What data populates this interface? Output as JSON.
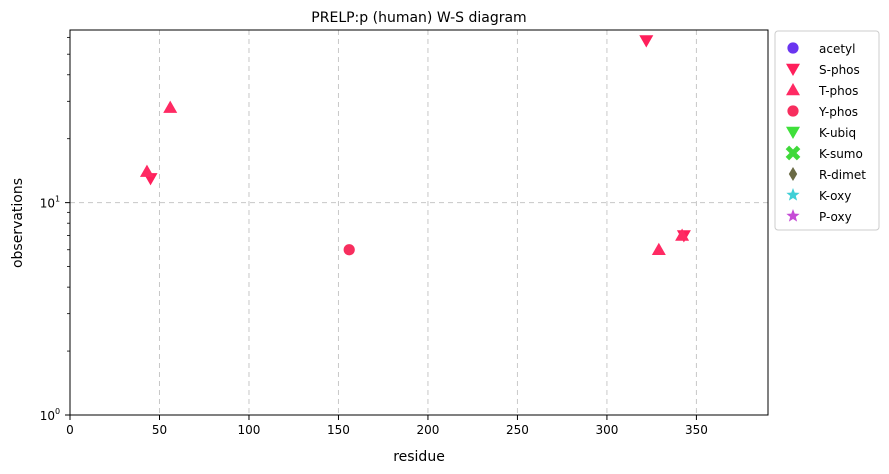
{
  "chart_data": {
    "type": "scatter",
    "title": "PRELP:p (human) W-S diagram",
    "xlabel": "residue",
    "ylabel": "observations",
    "xlim": [
      0,
      390
    ],
    "ylim": [
      1,
      65
    ],
    "yscale": "log",
    "grid": true,
    "legend_position": "outside-right",
    "x_ticks": [
      {
        "value": 0,
        "label": "0"
      },
      {
        "value": 50,
        "label": "50"
      },
      {
        "value": 100,
        "label": "100"
      },
      {
        "value": 150,
        "label": "150"
      },
      {
        "value": 200,
        "label": "200"
      },
      {
        "value": 250,
        "label": "250"
      },
      {
        "value": 300,
        "label": "300"
      },
      {
        "value": 350,
        "label": "350"
      }
    ],
    "y_ticks": [
      {
        "value": 1,
        "label": "10",
        "sup": "0"
      },
      {
        "value": 10,
        "label": "10",
        "sup": "1"
      }
    ],
    "series": [
      {
        "name": "acetyl",
        "marker": "circle",
        "color": "#6a35f0",
        "points": []
      },
      {
        "name": "S-phos",
        "marker": "triangle-down",
        "color": "#ff1f5b",
        "points": [
          {
            "x": 45,
            "y": 13
          },
          {
            "x": 322,
            "y": 58
          },
          {
            "x": 343,
            "y": 7
          }
        ]
      },
      {
        "name": "T-phos",
        "marker": "triangle-up",
        "color": "#ff2a63",
        "points": [
          {
            "x": 43,
            "y": 14
          },
          {
            "x": 56,
            "y": 28
          },
          {
            "x": 329,
            "y": 6
          },
          {
            "x": 342,
            "y": 7
          }
        ]
      },
      {
        "name": "Y-phos",
        "marker": "circle",
        "color": "#f72e5e",
        "points": [
          {
            "x": 156,
            "y": 6
          }
        ]
      },
      {
        "name": "K-ubiq",
        "marker": "triangle-down",
        "color": "#3fe03a",
        "points": []
      },
      {
        "name": "K-sumo",
        "marker": "x",
        "color": "#3fd93a",
        "points": []
      },
      {
        "name": "R-dimet",
        "marker": "diamond",
        "color": "#6b6b45",
        "points": []
      },
      {
        "name": "K-oxy",
        "marker": "star",
        "color": "#3fcfd6",
        "points": []
      },
      {
        "name": "P-oxy",
        "marker": "star",
        "color": "#c54bd6",
        "points": []
      }
    ]
  }
}
